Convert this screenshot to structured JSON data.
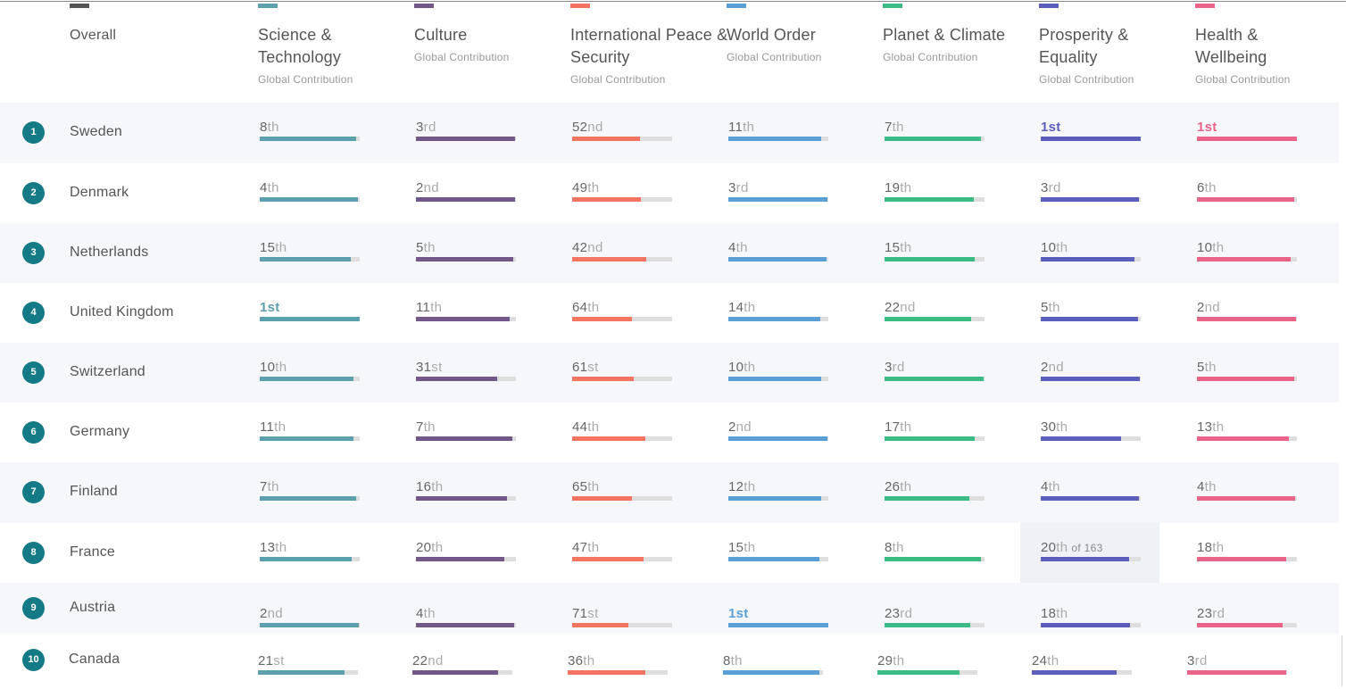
{
  "columns": [
    {
      "key": "overall",
      "title": "Overall",
      "subtitle": "",
      "color": "#555555"
    },
    {
      "key": "science",
      "title": "Science & Technology",
      "subtitle": "Global Contribution",
      "color": "#5ba0ac"
    },
    {
      "key": "culture",
      "title": "Culture",
      "subtitle": "Global Contribution",
      "color": "#715888"
    },
    {
      "key": "peace",
      "title": "International Peace & Security",
      "subtitle": "Global Contribution",
      "color": "#f27461"
    },
    {
      "key": "world",
      "title": "World Order",
      "subtitle": "Global Contribution",
      "color": "#5a9fd6"
    },
    {
      "key": "planet",
      "title": "Planet & Climate",
      "subtitle": "Global Contribution",
      "color": "#3dbb86"
    },
    {
      "key": "prosperity",
      "title": "Prosperity & Equality",
      "subtitle": "Global Contribution",
      "color": "#5c5ebb"
    },
    {
      "key": "health",
      "title": "Health & Wellbeing",
      "subtitle": "Global Contribution",
      "color": "#e96488"
    }
  ],
  "rows": [
    {
      "rank": "1",
      "country": "Sweden",
      "cells": [
        {
          "num": "8",
          "suf": "th",
          "fill": 0.96
        },
        {
          "num": "3",
          "suf": "rd",
          "fill": 0.99
        },
        {
          "num": "52",
          "suf": "nd",
          "fill": 0.68
        },
        {
          "num": "11",
          "suf": "th",
          "fill": 0.93
        },
        {
          "num": "7",
          "suf": "th",
          "fill": 0.96
        },
        {
          "num": "1",
          "suf": "st",
          "fill": 1.0
        },
        {
          "num": "1",
          "suf": "st",
          "fill": 1.0
        }
      ]
    },
    {
      "rank": "2",
      "country": "Denmark",
      "cells": [
        {
          "num": "4",
          "suf": "th",
          "fill": 0.98
        },
        {
          "num": "2",
          "suf": "nd",
          "fill": 0.99
        },
        {
          "num": "49",
          "suf": "th",
          "fill": 0.69
        },
        {
          "num": "3",
          "suf": "rd",
          "fill": 0.99
        },
        {
          "num": "19",
          "suf": "th",
          "fill": 0.89
        },
        {
          "num": "3",
          "suf": "rd",
          "fill": 0.98
        },
        {
          "num": "6",
          "suf": "th",
          "fill": 0.97
        }
      ]
    },
    {
      "rank": "3",
      "country": "Netherlands",
      "cells": [
        {
          "num": "15",
          "suf": "th",
          "fill": 0.91
        },
        {
          "num": "5",
          "suf": "th",
          "fill": 0.97
        },
        {
          "num": "42",
          "suf": "nd",
          "fill": 0.74
        },
        {
          "num": "4",
          "suf": "th",
          "fill": 0.98
        },
        {
          "num": "15",
          "suf": "th",
          "fill": 0.9
        },
        {
          "num": "10",
          "suf": "th",
          "fill": 0.94
        },
        {
          "num": "10",
          "suf": "th",
          "fill": 0.94
        }
      ]
    },
    {
      "rank": "4",
      "country": "United Kingdom",
      "cells": [
        {
          "num": "1",
          "suf": "st",
          "fill": 1.0
        },
        {
          "num": "11",
          "suf": "th",
          "fill": 0.94
        },
        {
          "num": "64",
          "suf": "th",
          "fill": 0.6
        },
        {
          "num": "14",
          "suf": "th",
          "fill": 0.92
        },
        {
          "num": "22",
          "suf": "nd",
          "fill": 0.87
        },
        {
          "num": "5",
          "suf": "th",
          "fill": 0.97
        },
        {
          "num": "2",
          "suf": "nd",
          "fill": 0.99
        }
      ]
    },
    {
      "rank": "5",
      "country": "Switzerland",
      "cells": [
        {
          "num": "10",
          "suf": "th",
          "fill": 0.94
        },
        {
          "num": "31",
          "suf": "st",
          "fill": 0.81
        },
        {
          "num": "61",
          "suf": "st",
          "fill": 0.62
        },
        {
          "num": "10",
          "suf": "th",
          "fill": 0.93
        },
        {
          "num": "3",
          "suf": "rd",
          "fill": 0.99
        },
        {
          "num": "2",
          "suf": "nd",
          "fill": 0.99
        },
        {
          "num": "5",
          "suf": "th",
          "fill": 0.97
        }
      ]
    },
    {
      "rank": "6",
      "country": "Germany",
      "cells": [
        {
          "num": "11",
          "suf": "th",
          "fill": 0.94
        },
        {
          "num": "7",
          "suf": "th",
          "fill": 0.96
        },
        {
          "num": "44",
          "suf": "th",
          "fill": 0.73
        },
        {
          "num": "2",
          "suf": "nd",
          "fill": 0.99
        },
        {
          "num": "17",
          "suf": "th",
          "fill": 0.9
        },
        {
          "num": "30",
          "suf": "th",
          "fill": 0.8
        },
        {
          "num": "13",
          "suf": "th",
          "fill": 0.92
        }
      ]
    },
    {
      "rank": "7",
      "country": "Finland",
      "cells": [
        {
          "num": "7",
          "suf": "th",
          "fill": 0.96
        },
        {
          "num": "16",
          "suf": "th",
          "fill": 0.91
        },
        {
          "num": "65",
          "suf": "th",
          "fill": 0.6
        },
        {
          "num": "12",
          "suf": "th",
          "fill": 0.93
        },
        {
          "num": "26",
          "suf": "th",
          "fill": 0.85
        },
        {
          "num": "4",
          "suf": "th",
          "fill": 0.98
        },
        {
          "num": "4",
          "suf": "th",
          "fill": 0.98
        }
      ]
    },
    {
      "rank": "8",
      "country": "France",
      "cells": [
        {
          "num": "13",
          "suf": "th",
          "fill": 0.92
        },
        {
          "num": "20",
          "suf": "th",
          "fill": 0.88
        },
        {
          "num": "47",
          "suf": "th",
          "fill": 0.71
        },
        {
          "num": "15",
          "suf": "th",
          "fill": 0.91
        },
        {
          "num": "8",
          "suf": "th",
          "fill": 0.96
        },
        {
          "num": "20",
          "suf": "th",
          "fill": 0.88,
          "of": "of 163",
          "highlight": true
        },
        {
          "num": "18",
          "suf": "th",
          "fill": 0.89
        }
      ]
    },
    {
      "rank": "9",
      "country": "Austria",
      "cells": [
        {
          "num": "2",
          "suf": "nd",
          "fill": 0.99
        },
        {
          "num": "4",
          "suf": "th",
          "fill": 0.98
        },
        {
          "num": "71",
          "suf": "st",
          "fill": 0.56
        },
        {
          "num": "1",
          "suf": "st",
          "fill": 1.0
        },
        {
          "num": "23",
          "suf": "rd",
          "fill": 0.86
        },
        {
          "num": "18",
          "suf": "th",
          "fill": 0.89
        },
        {
          "num": "23",
          "suf": "rd",
          "fill": 0.86
        }
      ]
    },
    {
      "rank": "10",
      "country": "Canada",
      "cells": [
        {
          "num": "21",
          "suf": "st",
          "fill": 0.87
        },
        {
          "num": "22",
          "suf": "nd",
          "fill": 0.86
        },
        {
          "num": "36",
          "suf": "th",
          "fill": 0.78
        },
        {
          "num": "8",
          "suf": "th",
          "fill": 0.96
        },
        {
          "num": "29",
          "suf": "th",
          "fill": 0.82
        },
        {
          "num": "24",
          "suf": "th",
          "fill": 0.85
        },
        {
          "num": "3",
          "suf": "rd",
          "fill": 0.99
        }
      ]
    }
  ]
}
